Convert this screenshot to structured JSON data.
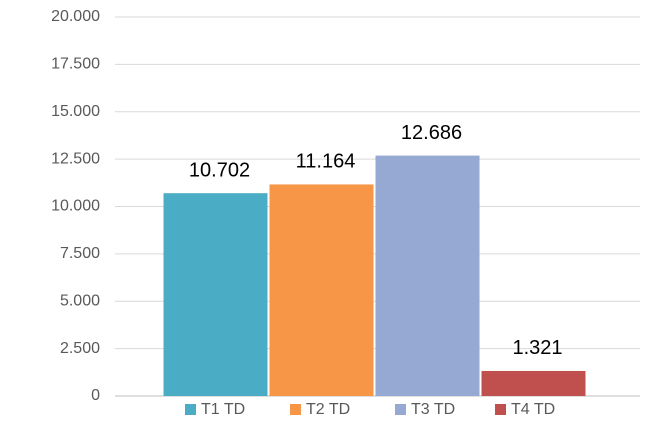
{
  "chart_data": {
    "type": "bar",
    "categories": [
      null
    ],
    "series": [
      {
        "name": "T1 TD",
        "color": "#4bacc6",
        "values": [
          10702
        ],
        "value_labels": [
          "10.702"
        ]
      },
      {
        "name": "T2 TD",
        "color": "#f79646",
        "values": [
          11164
        ],
        "value_labels": [
          "11.164"
        ]
      },
      {
        "name": "T3 TD",
        "color": "#95a9d3",
        "values": [
          12686
        ],
        "value_labels": [
          "12.686"
        ]
      },
      {
        "name": "T4 TD",
        "color": "#c0504d",
        "values": [
          1321
        ],
        "value_labels": [
          "1.321"
        ]
      }
    ],
    "ylim": [
      0,
      20000
    ],
    "yticks": [
      {
        "value": 0,
        "label": "0"
      },
      {
        "value": 2500,
        "label": "2.500"
      },
      {
        "value": 5000,
        "label": "5.000"
      },
      {
        "value": 7500,
        "label": "7.500"
      },
      {
        "value": 10000,
        "label": "10.000"
      },
      {
        "value": 12500,
        "label": "12.500"
      },
      {
        "value": 15000,
        "label": "15.000"
      },
      {
        "value": 17500,
        "label": "17.500"
      },
      {
        "value": 20000,
        "label": "20.000"
      }
    ],
    "grid": true,
    "legend": "bottom"
  }
}
